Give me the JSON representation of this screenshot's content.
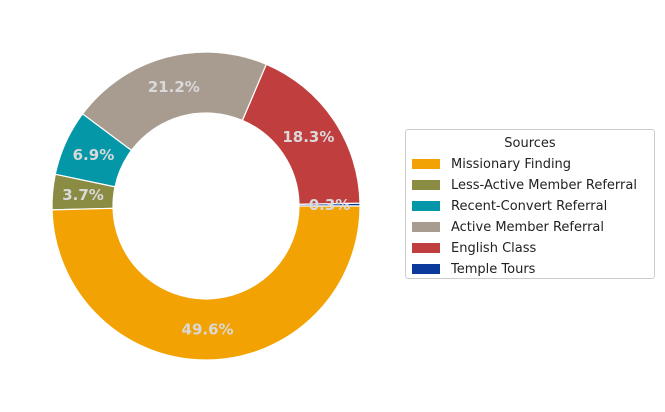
{
  "chart_data": {
    "type": "pie",
    "donut": true,
    "start_angle_deg": 0,
    "direction": "counterclockwise",
    "legend_title": "Sources",
    "legend_placement": "right",
    "slices": [
      {
        "label": "Temple Tours",
        "value": 0.3,
        "display": "0.3%",
        "color": "#0a3a9c"
      },
      {
        "label": "English Class",
        "value": 18.3,
        "display": "18.3%",
        "color": "#c13e3e"
      },
      {
        "label": "Active Member Referral",
        "value": 21.2,
        "display": "21.2%",
        "color": "#a89c91"
      },
      {
        "label": "Recent-Convert Referral",
        "value": 6.9,
        "display": "6.9%",
        "color": "#0397a8"
      },
      {
        "label": "Less-Active Member Referral",
        "value": 3.7,
        "display": "3.7%",
        "color": "#8b8c44"
      },
      {
        "label": "Missionary Finding",
        "value": 49.6,
        "display": "49.6%",
        "color": "#f2a202"
      }
    ],
    "legend_order": [
      "Missionary Finding",
      "Less-Active Member Referral",
      "Recent-Convert Referral",
      "Active Member Referral",
      "English Class",
      "Temple Tours"
    ],
    "label_color": "#d9d9d9"
  }
}
